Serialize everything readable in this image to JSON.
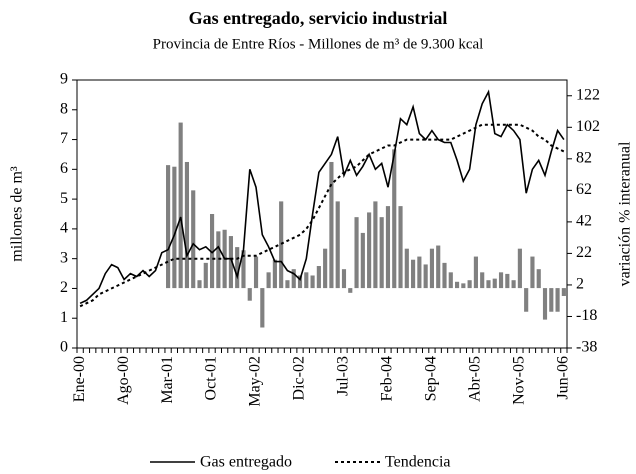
{
  "chart_data": {
    "type": "line_bar",
    "title": "Gas entregado, servicio industrial",
    "subtitle": "Provincia de Entre Ríos - Millones de m³ de 9.300 kcal",
    "ylabel": "millones de m³",
    "y2label": "variación % interanual",
    "categories": [
      "Ene-00",
      null,
      null,
      null,
      null,
      null,
      null,
      "Ago-00",
      null,
      null,
      null,
      null,
      null,
      null,
      "Mar-01",
      null,
      null,
      null,
      null,
      null,
      null,
      "Oct-01",
      null,
      null,
      null,
      null,
      null,
      null,
      "May-02",
      null,
      null,
      null,
      null,
      null,
      null,
      "Dic-02",
      null,
      null,
      null,
      null,
      null,
      null,
      "Jul-03",
      null,
      null,
      null,
      null,
      null,
      null,
      "Feb-04",
      null,
      null,
      null,
      null,
      null,
      null,
      "Sep-04",
      null,
      null,
      null,
      null,
      null,
      null,
      "Abr-05",
      null,
      null,
      null,
      null,
      null,
      null,
      "Nov-05",
      null,
      null,
      null,
      null,
      null,
      null,
      "Jun-06"
    ],
    "ylim": [
      0,
      9
    ],
    "yticks": [
      0,
      1,
      2,
      3,
      4,
      5,
      6,
      7,
      8,
      9
    ],
    "y2lim": [
      -38,
      132
    ],
    "y2ticks": [
      -38,
      -18,
      2,
      22,
      42,
      62,
      82,
      102,
      122
    ],
    "series": [
      {
        "name": "Gas entregado",
        "color": "#000000",
        "style": "solid",
        "values": [
          1.5,
          1.6,
          1.8,
          2.0,
          2.5,
          2.8,
          2.7,
          2.3,
          2.5,
          2.4,
          2.6,
          2.4,
          2.6,
          3.2,
          3.3,
          3.8,
          4.4,
          3.1,
          3.5,
          3.3,
          3.4,
          3.2,
          3.4,
          3.0,
          3.0,
          2.4,
          3.3,
          6.0,
          5.4,
          3.8,
          3.4,
          2.9,
          2.9,
          2.6,
          2.5,
          2.3,
          3.0,
          4.5,
          5.9,
          6.2,
          6.5,
          7.1,
          5.8,
          6.3,
          5.8,
          6.1,
          6.5,
          6.0,
          6.2,
          5.4,
          6.5,
          7.7,
          7.5,
          8.1,
          7.2,
          7.0,
          7.3,
          7.0,
          6.9,
          6.9,
          6.3,
          5.6,
          6.0,
          7.5,
          8.2,
          8.6,
          7.2,
          7.1,
          7.5,
          7.3,
          7.0,
          5.2,
          6.0,
          6.3,
          5.8,
          6.6,
          7.3,
          7.0
        ]
      },
      {
        "name": "Tendencia",
        "color": "#000000",
        "style": "dashed",
        "values": [
          1.4,
          1.5,
          1.6,
          1.8,
          1.9,
          2.0,
          2.1,
          2.2,
          2.3,
          2.4,
          2.5,
          2.6,
          2.7,
          2.8,
          2.9,
          3.0,
          3.0,
          3.0,
          3.0,
          3.0,
          3.0,
          3.0,
          3.0,
          3.0,
          3.0,
          3.0,
          3.1,
          3.1,
          3.1,
          3.2,
          3.3,
          3.4,
          3.5,
          3.6,
          3.7,
          3.8,
          4.0,
          4.3,
          4.7,
          5.1,
          5.5,
          5.7,
          5.9,
          6.0,
          6.1,
          6.3,
          6.5,
          6.6,
          6.7,
          6.8,
          6.8,
          6.9,
          7.0,
          7.0,
          7.0,
          7.0,
          7.0,
          7.0,
          7.0,
          7.0,
          7.1,
          7.2,
          7.3,
          7.4,
          7.5,
          7.5,
          7.5,
          7.5,
          7.5,
          7.5,
          7.5,
          7.4,
          7.3,
          7.1,
          7.0,
          6.8,
          6.7,
          6.6
        ]
      },
      {
        "color": "#808080",
        "axis": "y2",
        "style": "bar",
        "values": [
          null,
          null,
          null,
          null,
          null,
          null,
          null,
          null,
          null,
          null,
          null,
          null,
          null,
          null,
          78,
          77,
          105,
          80,
          62,
          5,
          16,
          47,
          36,
          37,
          33,
          26,
          24,
          -8,
          20,
          -25,
          10,
          18,
          55,
          5,
          12,
          8,
          10,
          8,
          14,
          25,
          80,
          55,
          12,
          -3,
          45,
          35,
          48,
          55,
          45,
          52,
          88,
          52,
          25,
          18,
          20,
          15,
          25,
          27,
          16,
          10,
          4,
          3,
          5,
          20,
          10,
          5,
          6,
          10,
          9,
          5,
          25,
          -15,
          20,
          12,
          -20,
          -15,
          -15,
          -5
        ]
      }
    ],
    "legend": "bottom"
  }
}
